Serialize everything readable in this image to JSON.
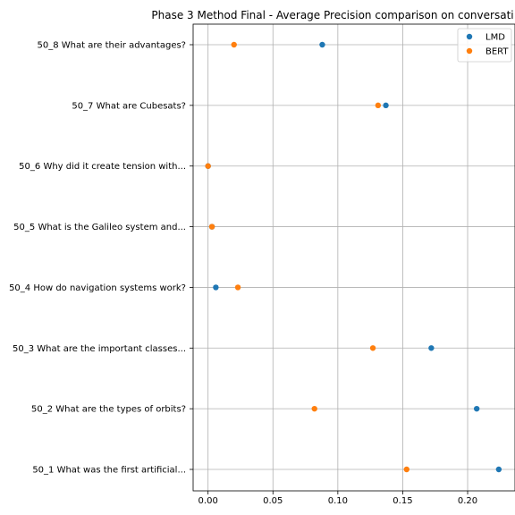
{
  "chart_data": {
    "type": "scatter",
    "title": "Phase 3 Method Final - Average Precision comparison on conversati",
    "xlabel": "",
    "ylabel": "",
    "xlim": [
      -0.0115,
      0.2365
    ],
    "xticks": [
      0.0,
      0.05,
      0.1,
      0.15,
      0.2
    ],
    "xtick_labels": [
      "0.00",
      "0.05",
      "0.10",
      "0.15",
      "0.20"
    ],
    "categories": [
      "50_1 What was the first artificial...",
      "50_2 What are the types of orbits?",
      "50_3 What are the important classes...",
      "50_4 How do navigation systems work?",
      "50_5 What is the Galileo system and...",
      "50_6 Why did it create tension with...",
      "50_7 What are Cubesats?",
      "50_8 What are their advantages?"
    ],
    "series": [
      {
        "name": "LMD",
        "color": "#1f77b4",
        "values": [
          0.224,
          0.207,
          0.172,
          0.006,
          0.003,
          0.0,
          0.137,
          0.088
        ]
      },
      {
        "name": "BERT",
        "color": "#ff7f0e",
        "values": [
          0.153,
          0.082,
          0.127,
          0.023,
          0.003,
          0.0,
          0.131,
          0.02
        ]
      }
    ],
    "grid": true,
    "legend_position": "top-right"
  }
}
